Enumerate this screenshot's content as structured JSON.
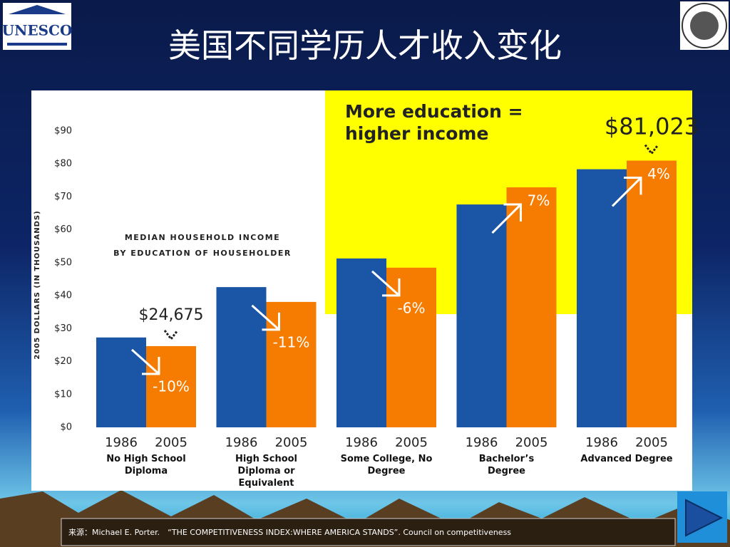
{
  "slide": {
    "title": "美国不同学历人才收入变化",
    "source": "来源：Michael E. Porter.　“THE COMPETITIVENESS INDEX:WHERE AMERICA STANDS”. Council on competitiveness",
    "logo_left": "UNESCO"
  },
  "chart_data": {
    "type": "bar",
    "subtitle_lines": [
      "MEDIAN HOUSEHOLD INCOME",
      "BY EDUCATION OF HOUSEHOLDER"
    ],
    "headline_lines": [
      "More education =",
      "higher income"
    ],
    "y_label": "2005 DOLLARS (IN THOUSANDS)",
    "categories": [
      "No High School Diploma",
      "High School Diploma or Equivalent",
      "Some College, No Degree",
      "Bachelor’s Degree",
      "Advanced Degree"
    ],
    "series": [
      {
        "name": "1986",
        "color": "#1a55a6",
        "values": [
          27.3,
          42.6,
          51.3,
          67.7,
          78.4
        ]
      },
      {
        "name": "2005",
        "color": "#f57c00",
        "values": [
          24.675,
          38.1,
          48.5,
          72.9,
          81.023
        ],
        "value_labels": [
          "$24,675",
          null,
          null,
          null,
          "$81,023"
        ]
      }
    ],
    "changes": [
      "-10%",
      "-11%",
      "-6%",
      "7%",
      "4%"
    ],
    "ylim": [
      0,
      90
    ],
    "yticks": [
      {
        "value": 0,
        "label": "$0"
      },
      {
        "value": 10,
        "label": "$10"
      },
      {
        "value": 20,
        "label": "$20"
      },
      {
        "value": 30,
        "label": "$30"
      },
      {
        "value": 40,
        "label": "$40"
      },
      {
        "value": 50,
        "label": "$50"
      },
      {
        "value": 60,
        "label": "$60"
      },
      {
        "value": 70,
        "label": "$70"
      },
      {
        "value": 80,
        "label": "$80"
      },
      {
        "value": 90,
        "label": "$90"
      }
    ]
  }
}
